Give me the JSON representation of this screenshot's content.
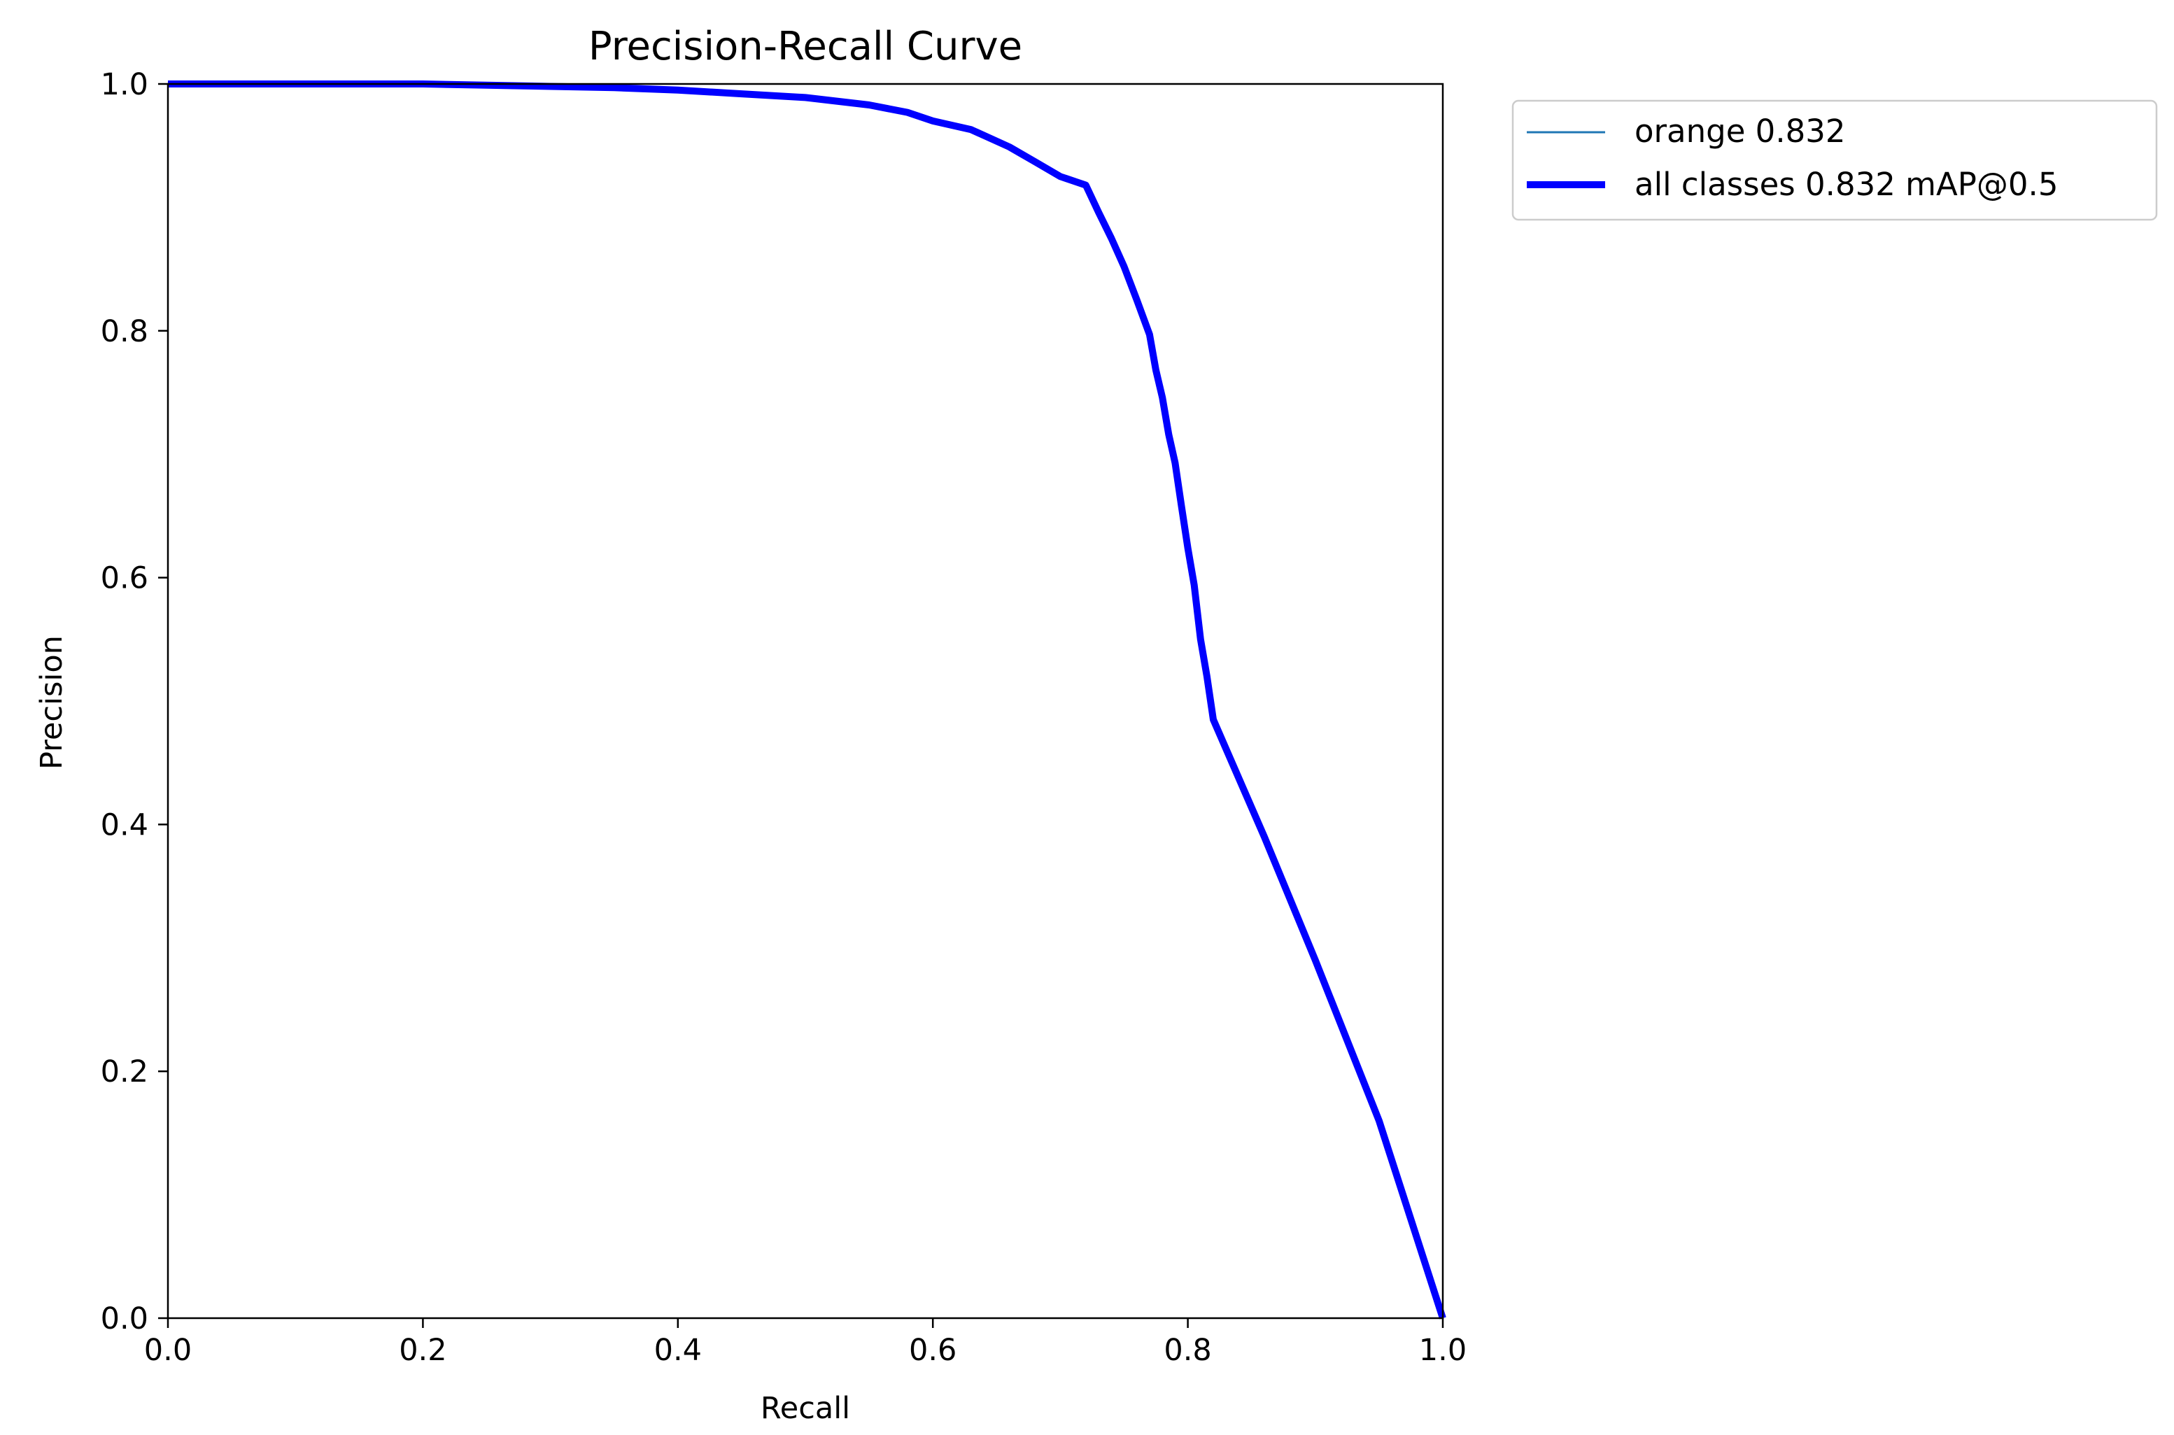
{
  "chart_data": {
    "type": "line",
    "title": "Precision-Recall Curve",
    "xlabel": "Recall",
    "ylabel": "Precision",
    "xlim": [
      0,
      1
    ],
    "ylim": [
      0,
      1
    ],
    "xticks": [
      0.0,
      0.2,
      0.4,
      0.6,
      0.8,
      1.0
    ],
    "yticks": [
      0.0,
      0.2,
      0.4,
      0.6,
      0.8,
      1.0
    ],
    "xtick_labels": [
      "0.0",
      "0.2",
      "0.4",
      "0.6",
      "0.8",
      "1.0"
    ],
    "ytick_labels": [
      "0.0",
      "0.2",
      "0.4",
      "0.6",
      "0.8",
      "1.0"
    ],
    "grid": false,
    "legend_position": "outside upper right",
    "series": [
      {
        "name": "orange 0.832",
        "color": "#1f77b4",
        "x": [
          0.0,
          0.1,
          0.2,
          0.25,
          0.3,
          0.35,
          0.4,
          0.45,
          0.5,
          0.55,
          0.58,
          0.6,
          0.63,
          0.66,
          0.68,
          0.7,
          0.72,
          0.73,
          0.74,
          0.75,
          0.76,
          0.77,
          0.775,
          0.78,
          0.785,
          0.79,
          0.795,
          0.8,
          0.805,
          0.81,
          0.815,
          0.82,
          0.86,
          0.9,
          0.95,
          1.0
        ],
        "y": [
          1.0,
          1.0,
          1.0,
          0.999,
          0.998,
          0.997,
          0.995,
          0.992,
          0.989,
          0.983,
          0.977,
          0.97,
          0.963,
          0.949,
          0.937,
          0.925,
          0.918,
          0.896,
          0.875,
          0.852,
          0.825,
          0.797,
          0.768,
          0.746,
          0.716,
          0.693,
          0.658,
          0.624,
          0.594,
          0.55,
          0.52,
          0.485,
          0.39,
          0.29,
          0.16,
          0.0
        ]
      },
      {
        "name": "all classes 0.832 mAP@0.5",
        "color": "#0000ff",
        "x": [
          0.0,
          0.1,
          0.2,
          0.25,
          0.3,
          0.35,
          0.4,
          0.45,
          0.5,
          0.55,
          0.58,
          0.6,
          0.63,
          0.66,
          0.68,
          0.7,
          0.72,
          0.73,
          0.74,
          0.75,
          0.76,
          0.77,
          0.775,
          0.78,
          0.785,
          0.79,
          0.795,
          0.8,
          0.805,
          0.81,
          0.815,
          0.82,
          0.86,
          0.9,
          0.95,
          1.0
        ],
        "y": [
          1.0,
          1.0,
          1.0,
          0.999,
          0.998,
          0.997,
          0.995,
          0.992,
          0.989,
          0.983,
          0.977,
          0.97,
          0.963,
          0.949,
          0.937,
          0.925,
          0.918,
          0.896,
          0.875,
          0.852,
          0.825,
          0.797,
          0.768,
          0.746,
          0.716,
          0.693,
          0.658,
          0.624,
          0.594,
          0.55,
          0.52,
          0.485,
          0.39,
          0.29,
          0.16,
          0.0
        ]
      }
    ]
  }
}
